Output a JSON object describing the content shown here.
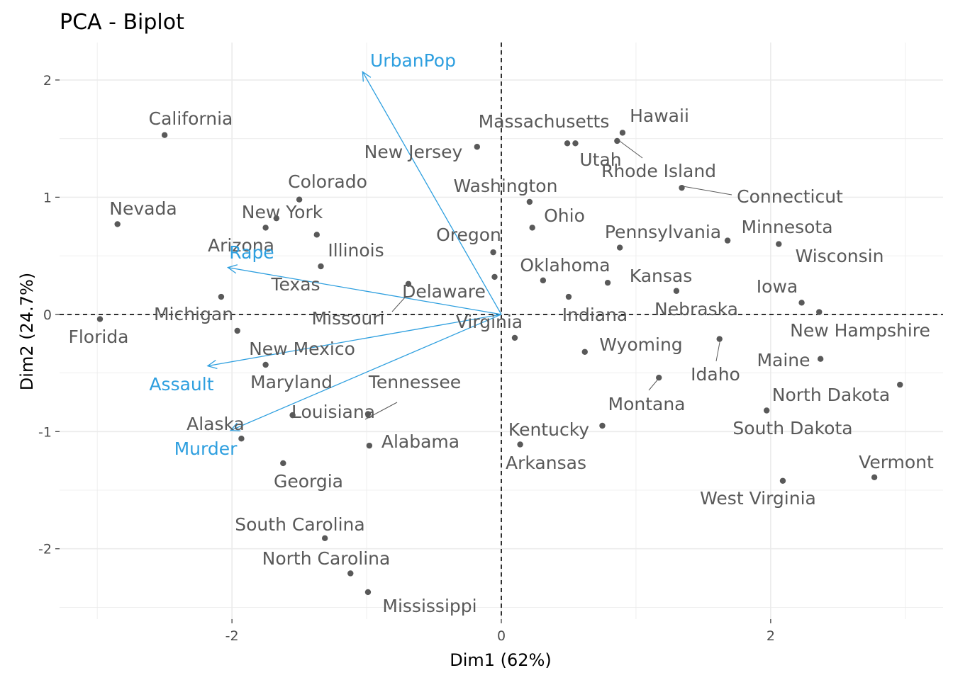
{
  "chart_data": {
    "type": "scatter",
    "title": "PCA - Biplot",
    "xlabel": "Dim1 (62%)",
    "ylabel": "Dim2 (24.7%)",
    "xlim": [
      -3.28,
      3.28
    ],
    "ylim": [
      -2.6,
      2.32
    ],
    "x_ticks": [
      -2,
      0,
      2
    ],
    "y_ticks": [
      -2,
      -1,
      0,
      1,
      2
    ],
    "x_tick_labels": [
      "-2",
      "0",
      "2"
    ],
    "y_tick_labels": [
      "-2",
      "-1",
      "0",
      "1",
      "2"
    ],
    "grid": true,
    "colors": {
      "points": "#595959",
      "variables": "#2e9fdf",
      "grid": "#ebebeb",
      "ref_lines": "#000000"
    },
    "points": [
      {
        "name": "Alabama",
        "x": -0.98,
        "y": -1.12
      },
      {
        "name": "Alaska",
        "x": -1.93,
        "y": -1.06
      },
      {
        "name": "Arizona",
        "x": -1.75,
        "y": 0.74
      },
      {
        "name": "Arkansas",
        "x": 0.14,
        "y": -1.11
      },
      {
        "name": "California",
        "x": -2.5,
        "y": 1.53
      },
      {
        "name": "Colorado",
        "x": -1.5,
        "y": 0.98
      },
      {
        "name": "Connecticut",
        "x": 1.34,
        "y": 1.08
      },
      {
        "name": "Delaware",
        "x": -0.05,
        "y": 0.32
      },
      {
        "name": "Florida",
        "x": -2.98,
        "y": -0.04
      },
      {
        "name": "Georgia",
        "x": -1.62,
        "y": -1.27
      },
      {
        "name": "Hawaii",
        "x": 0.9,
        "y": 1.55
      },
      {
        "name": "Idaho",
        "x": 1.62,
        "y": -0.21
      },
      {
        "name": "Illinois",
        "x": -1.37,
        "y": 0.68
      },
      {
        "name": "Indiana",
        "x": 0.5,
        "y": 0.15
      },
      {
        "name": "Iowa",
        "x": 2.23,
        "y": 0.1
      },
      {
        "name": "Kansas",
        "x": 0.79,
        "y": 0.27
      },
      {
        "name": "Kentucky",
        "x": 0.75,
        "y": -0.95
      },
      {
        "name": "Louisiana",
        "x": -1.55,
        "y": -0.86
      },
      {
        "name": "Maine",
        "x": 2.37,
        "y": -0.38
      },
      {
        "name": "Maryland",
        "x": -1.75,
        "y": -0.43
      },
      {
        "name": "Massachusetts",
        "x": 0.49,
        "y": 1.46
      },
      {
        "name": "Michigan",
        "x": -2.08,
        "y": 0.15
      },
      {
        "name": "Minnesota",
        "x": 1.68,
        "y": 0.63
      },
      {
        "name": "Mississippi",
        "x": -0.99,
        "y": -2.37
      },
      {
        "name": "Missouri",
        "x": -0.69,
        "y": 0.26
      },
      {
        "name": "Montana",
        "x": 1.17,
        "y": -0.54
      },
      {
        "name": "Nebraska",
        "x": 1.3,
        "y": 0.2
      },
      {
        "name": "Nevada",
        "x": -2.85,
        "y": 0.77
      },
      {
        "name": "New Hampshire",
        "x": 2.36,
        "y": 0.02
      },
      {
        "name": "New Jersey",
        "x": -0.18,
        "y": 1.43
      },
      {
        "name": "New Mexico",
        "x": -1.96,
        "y": -0.14
      },
      {
        "name": "New York",
        "x": -1.67,
        "y": 0.82
      },
      {
        "name": "North Carolina",
        "x": -1.12,
        "y": -2.21
      },
      {
        "name": "North Dakota",
        "x": 2.96,
        "y": -0.6
      },
      {
        "name": "Ohio",
        "x": 0.23,
        "y": 0.74
      },
      {
        "name": "Oklahoma",
        "x": 0.31,
        "y": 0.29
      },
      {
        "name": "Oregon",
        "x": -0.06,
        "y": 0.53
      },
      {
        "name": "Pennsylvania",
        "x": 0.88,
        "y": 0.57
      },
      {
        "name": "Rhode Island",
        "x": 0.86,
        "y": 1.48
      },
      {
        "name": "South Carolina",
        "x": -1.31,
        "y": -1.91
      },
      {
        "name": "South Dakota",
        "x": 1.97,
        "y": -0.82
      },
      {
        "name": "Tennessee",
        "x": -0.99,
        "y": -0.85
      },
      {
        "name": "Texas",
        "x": -1.34,
        "y": 0.41
      },
      {
        "name": "Utah",
        "x": 0.55,
        "y": 1.46
      },
      {
        "name": "Vermont",
        "x": 2.77,
        "y": -1.39
      },
      {
        "name": "Virginia",
        "x": 0.1,
        "y": -0.2
      },
      {
        "name": "Washington",
        "x": 0.21,
        "y": 0.96
      },
      {
        "name": "West Virginia",
        "x": 2.09,
        "y": -1.42
      },
      {
        "name": "Wisconsin",
        "x": 2.06,
        "y": 0.6
      },
      {
        "name": "Wyoming",
        "x": 0.62,
        "y": -0.32
      }
    ],
    "variables": [
      {
        "name": "Murder",
        "x": -2.01,
        "y": -0.99
      },
      {
        "name": "Assault",
        "x": -2.18,
        "y": -0.44
      },
      {
        "name": "UrbanPop",
        "x": -1.03,
        "y": 2.07
      },
      {
        "name": "Rape",
        "x": -2.03,
        "y": 0.4
      }
    ]
  }
}
